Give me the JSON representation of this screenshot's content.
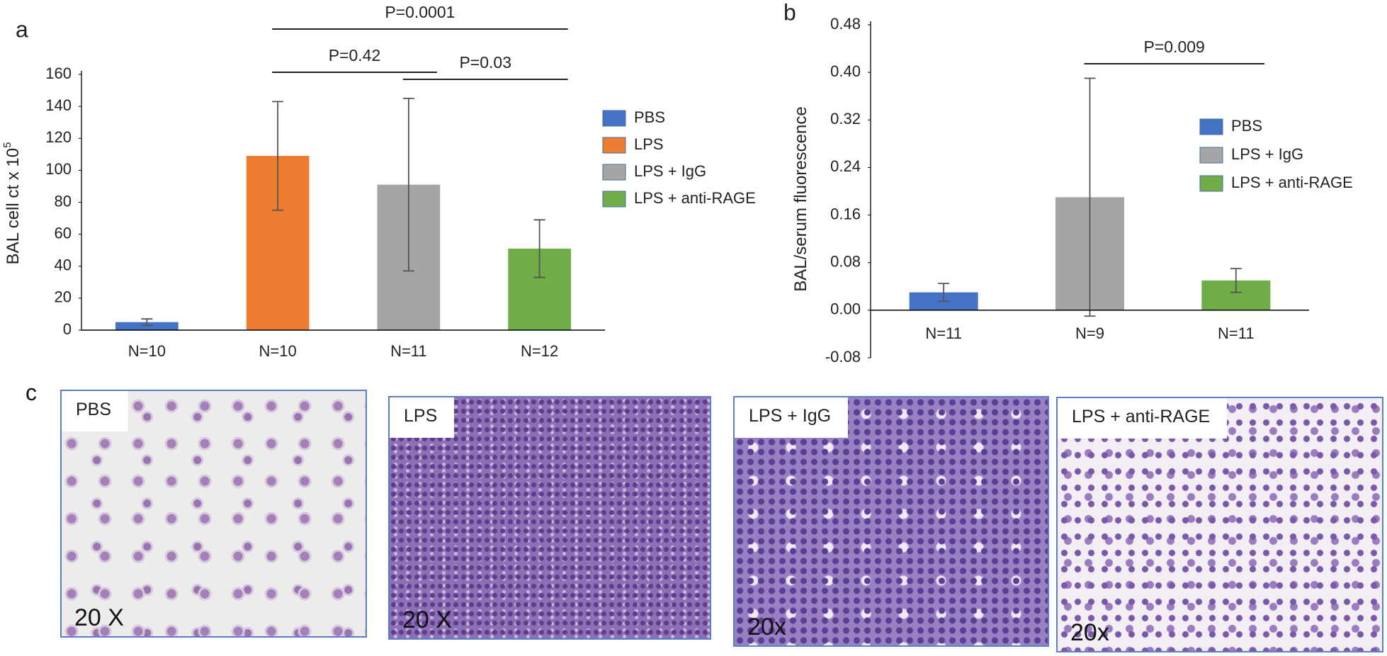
{
  "chart_data": [
    {
      "type": "bar",
      "panel_label": "a",
      "y_label": "BAL cell ct x 10",
      "y_label_exponent": "5",
      "categories": [
        "N=10",
        "N=10",
        "N=11",
        "N=12"
      ],
      "series": [
        {
          "name": "PBS",
          "color": "#4472c4"
        },
        {
          "name": "LPS",
          "color": "#ed7d31"
        },
        {
          "name": "LPS + IgG",
          "color": "#a5a5a5"
        },
        {
          "name": "LPS + anti-RAGE",
          "color": "#70ad47"
        }
      ],
      "values": [
        5,
        109,
        91,
        51
      ],
      "errors": [
        2,
        34,
        54,
        18
      ],
      "ylim": [
        0,
        160
      ],
      "yticks": [
        0,
        20,
        40,
        60,
        80,
        100,
        120,
        140,
        160
      ],
      "annotations": [
        "P=0.42",
        "P=0.03",
        "P=0.0001"
      ],
      "legend": "right"
    },
    {
      "type": "bar",
      "panel_label": "b",
      "y_label": "BAL/serum fluorescence",
      "categories": [
        "N=11",
        "N=9",
        "N=11"
      ],
      "series": [
        {
          "name": "PBS",
          "color": "#4472c4"
        },
        {
          "name": "LPS + IgG",
          "color": "#a5a5a5"
        },
        {
          "name": "LPS + anti-RAGE",
          "color": "#70ad47"
        }
      ],
      "values": [
        0.03,
        0.19,
        0.05
      ],
      "errors": [
        0.015,
        0.2,
        0.02
      ],
      "ylim": [
        -0.08,
        0.48
      ],
      "yticks": [
        {
          "value": -0.08,
          "label": "-0.08"
        },
        {
          "value": 0,
          "label": "0.00"
        },
        {
          "value": 0.08,
          "label": "0.08"
        },
        {
          "value": 0.16,
          "label": "0.16"
        },
        {
          "value": 0.24,
          "label": "0.24"
        },
        {
          "value": 0.32,
          "label": "0.32"
        },
        {
          "value": 0.4,
          "label": "0.40"
        },
        {
          "value": 0.48,
          "label": "0.48"
        }
      ],
      "annotations": [
        "P=0.009"
      ],
      "legend": "right"
    }
  ],
  "micrographs": {
    "panel_label": "c",
    "panels": [
      {
        "label": "PBS",
        "magnification": "20 X"
      },
      {
        "label": "LPS",
        "magnification": "20 X"
      },
      {
        "label": "LPS + IgG",
        "magnification": "20x"
      },
      {
        "label": "LPS + anti-RAGE",
        "magnification": "20x"
      }
    ]
  }
}
